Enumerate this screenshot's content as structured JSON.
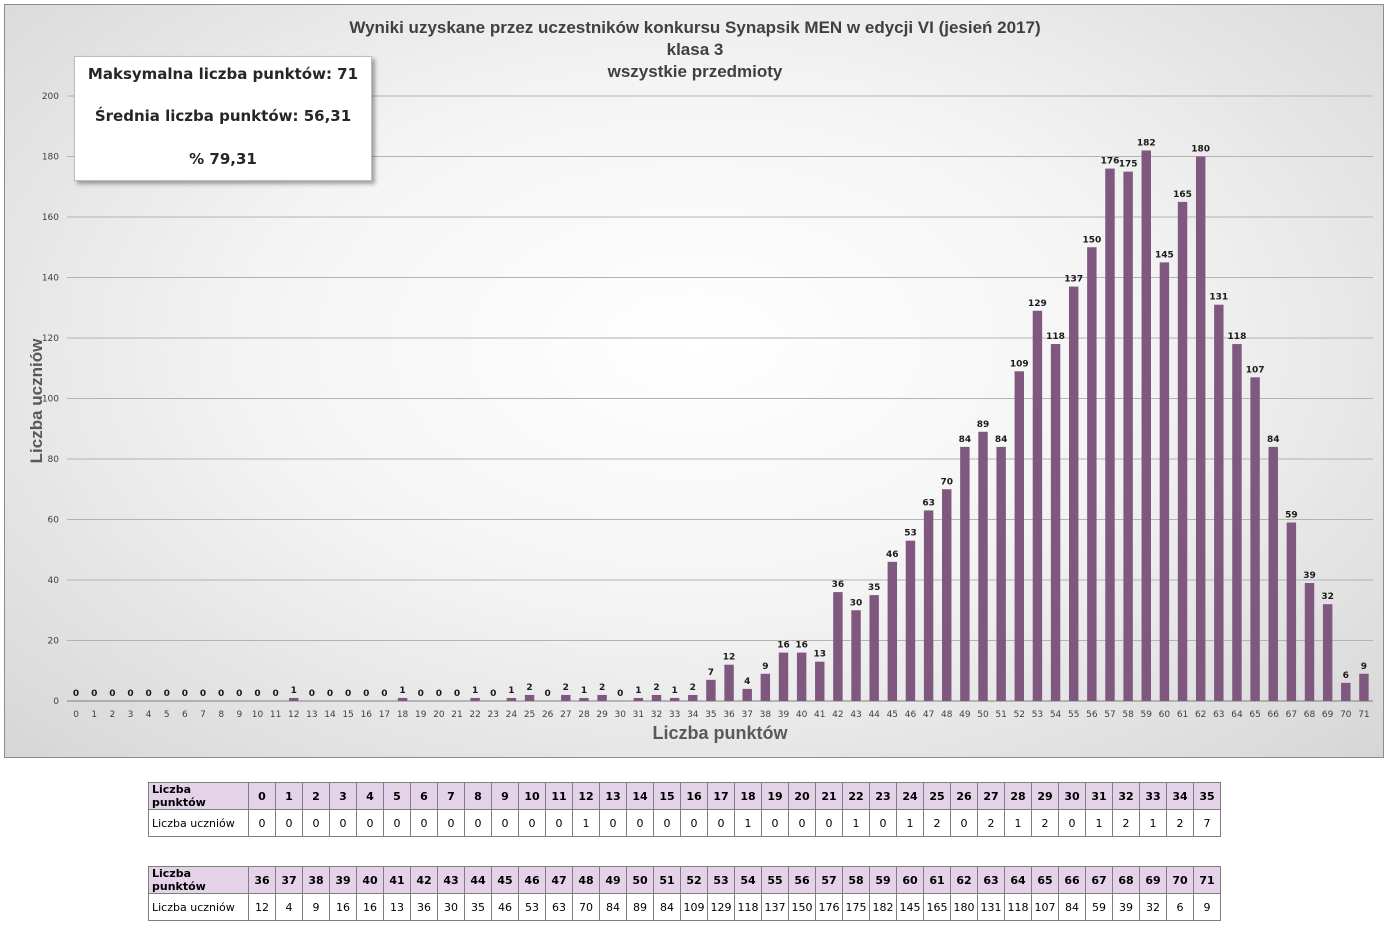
{
  "chart_data": {
    "type": "bar",
    "title": "Wyniki uzyskane przez uczestników konkursu Synapsik MEN w edycji VI (jesień 2017)",
    "subtitle_lines": [
      "klasa 3",
      "wszystkie przedmioty"
    ],
    "xlabel": "Liczba punktów",
    "ylabel": "Liczba uczniów",
    "ylim": [
      0,
      200
    ],
    "y_ticks": [
      0,
      20,
      40,
      60,
      80,
      100,
      120,
      140,
      160,
      180,
      200
    ],
    "grid": true,
    "bar_color": "#80587f",
    "categories": [
      "0",
      "1",
      "2",
      "3",
      "4",
      "5",
      "6",
      "7",
      "8",
      "9",
      "10",
      "11",
      "12",
      "13",
      "14",
      "15",
      "16",
      "17",
      "18",
      "19",
      "20",
      "21",
      "22",
      "23",
      "24",
      "25",
      "26",
      "27",
      "28",
      "29",
      "30",
      "31",
      "32",
      "33",
      "34",
      "35",
      "36",
      "37",
      "38",
      "39",
      "40",
      "41",
      "42",
      "43",
      "44",
      "45",
      "46",
      "47",
      "48",
      "49",
      "50",
      "51",
      "52",
      "53",
      "54",
      "55",
      "56",
      "57",
      "58",
      "59",
      "60",
      "61",
      "62",
      "63",
      "64",
      "65",
      "66",
      "67",
      "68",
      "69",
      "70",
      "71"
    ],
    "values": [
      0,
      0,
      0,
      0,
      0,
      0,
      0,
      0,
      0,
      0,
      0,
      0,
      1,
      0,
      0,
      0,
      0,
      0,
      1,
      0,
      0,
      0,
      1,
      0,
      1,
      2,
      0,
      2,
      1,
      2,
      0,
      1,
      2,
      1,
      2,
      7,
      12,
      4,
      9,
      16,
      16,
      13,
      36,
      30,
      35,
      46,
      53,
      63,
      70,
      84,
      89,
      84,
      109,
      129,
      118,
      137,
      150,
      176,
      175,
      182,
      145,
      165,
      180,
      131,
      118,
      107,
      84,
      59,
      39,
      32,
      6,
      9
    ]
  },
  "stats": {
    "max_label": "Maksymalna liczba punktów: 71",
    "avg_label": "Średnia  liczba punktów: 56,31",
    "pct_label": "% 79,31"
  },
  "table": {
    "points_header": "Liczba punktów",
    "counts_header": "Liczba uczniów"
  }
}
